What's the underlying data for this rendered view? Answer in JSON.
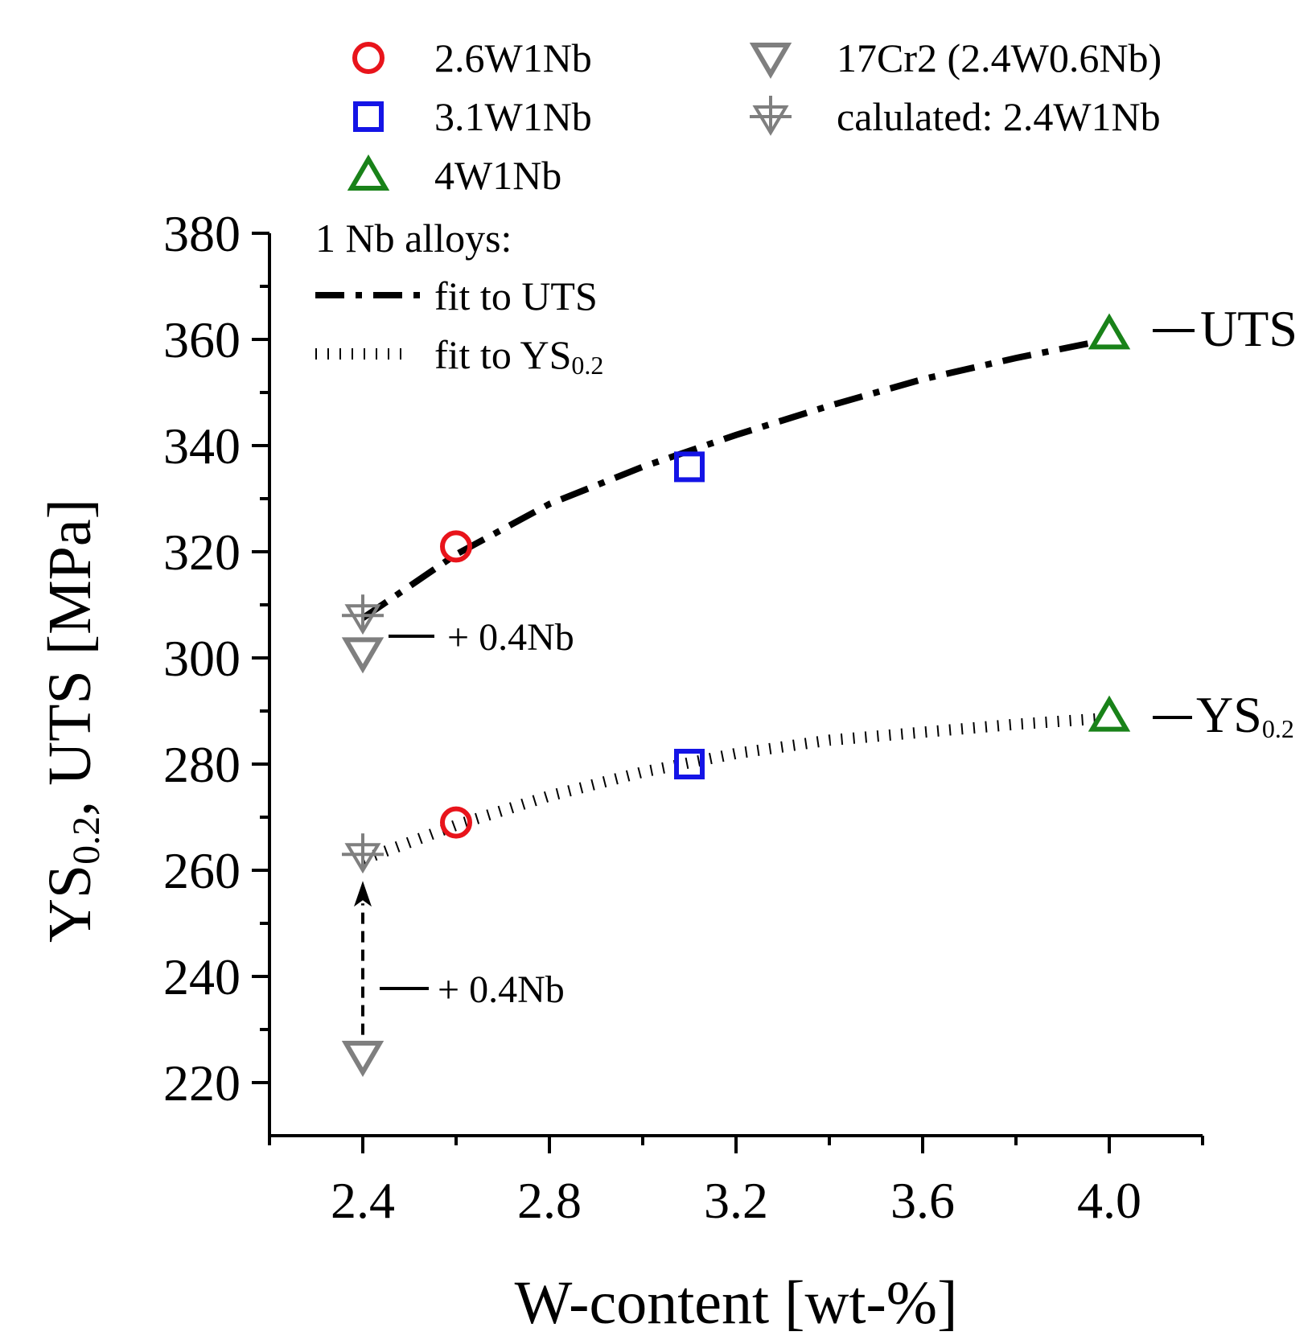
{
  "chart_data": {
    "type": "scatter",
    "xlabel": "W-content [wt-%]",
    "ylabel": {
      "main": "YS",
      "sub": "0.2",
      "rest": ", UTS [MPa]"
    },
    "xlim": [
      2.2,
      4.2
    ],
    "ylim": [
      210,
      380
    ],
    "xticks": [
      "2.4",
      "2.8",
      "3.2",
      "3.6",
      "4.0"
    ],
    "yticks": [
      "220",
      "240",
      "260",
      "280",
      "300",
      "320",
      "340",
      "360",
      "380"
    ],
    "series": [
      {
        "name": "2.6W1Nb",
        "marker": "circle",
        "color": "#e8141b",
        "points": [
          {
            "x": 2.6,
            "y": 321
          },
          {
            "x": 2.6,
            "y": 269
          }
        ]
      },
      {
        "name": "3.1W1Nb",
        "marker": "square",
        "color": "#1414e6",
        "points": [
          {
            "x": 3.1,
            "y": 336
          },
          {
            "x": 3.1,
            "y": 280
          }
        ]
      },
      {
        "name": "4W1Nb",
        "marker": "triangle-up",
        "color": "#198219",
        "points": [
          {
            "x": 4.0,
            "y": 361
          },
          {
            "x": 4.0,
            "y": 289
          }
        ]
      },
      {
        "name": "17Cr2 (2.4W0.6Nb)",
        "marker": "triangle-down",
        "color": "#7f7f7f",
        "points": [
          {
            "x": 2.4,
            "y": 301
          },
          {
            "x": 2.4,
            "y": 225
          }
        ]
      },
      {
        "name": "calulated: 2.4W1Nb",
        "marker": "triangle-down-plus",
        "color": "#7f7f7f",
        "points": [
          {
            "x": 2.4,
            "y": 308
          },
          {
            "x": 2.4,
            "y": 263
          }
        ]
      }
    ],
    "fits": [
      {
        "name": "fit to UTS",
        "style": "dash-dot",
        "x": [
          2.4,
          2.6,
          2.8,
          3.0,
          3.2,
          3.4,
          3.6,
          3.8,
          3.97
        ],
        "y": [
          307.5,
          319.5,
          329,
          336,
          342,
          347.5,
          352.5,
          356.5,
          359.5
        ]
      },
      {
        "name": "fit to YS0.2",
        "style": "dotted",
        "x": [
          2.4,
          2.6,
          2.8,
          3.0,
          3.2,
          3.4,
          3.6,
          3.8,
          3.97
        ],
        "y": [
          262,
          268.5,
          274,
          278.5,
          282,
          284.5,
          286,
          287.5,
          288.5
        ]
      }
    ],
    "legend": {
      "placement": "top",
      "group_title": "1 Nb alloys:",
      "fit_labels": [
        {
          "main": "fit to UTS",
          "sub": ""
        },
        {
          "main": "fit to YS",
          "sub": "0.2"
        }
      ]
    },
    "annotations": [
      {
        "id": "uts",
        "text": "UTS",
        "sub": ""
      },
      {
        "id": "ys",
        "text": "YS",
        "sub": "0.2"
      },
      {
        "id": "nb-upper",
        "text": "+ 0.4Nb",
        "sub": ""
      },
      {
        "id": "nb-lower",
        "text": "+ 0.4Nb",
        "sub": ""
      }
    ],
    "arrow": {
      "from": {
        "x": 2.4,
        "y": 229
      },
      "to": {
        "x": 2.4,
        "y": 258
      },
      "style": "dashed"
    }
  }
}
